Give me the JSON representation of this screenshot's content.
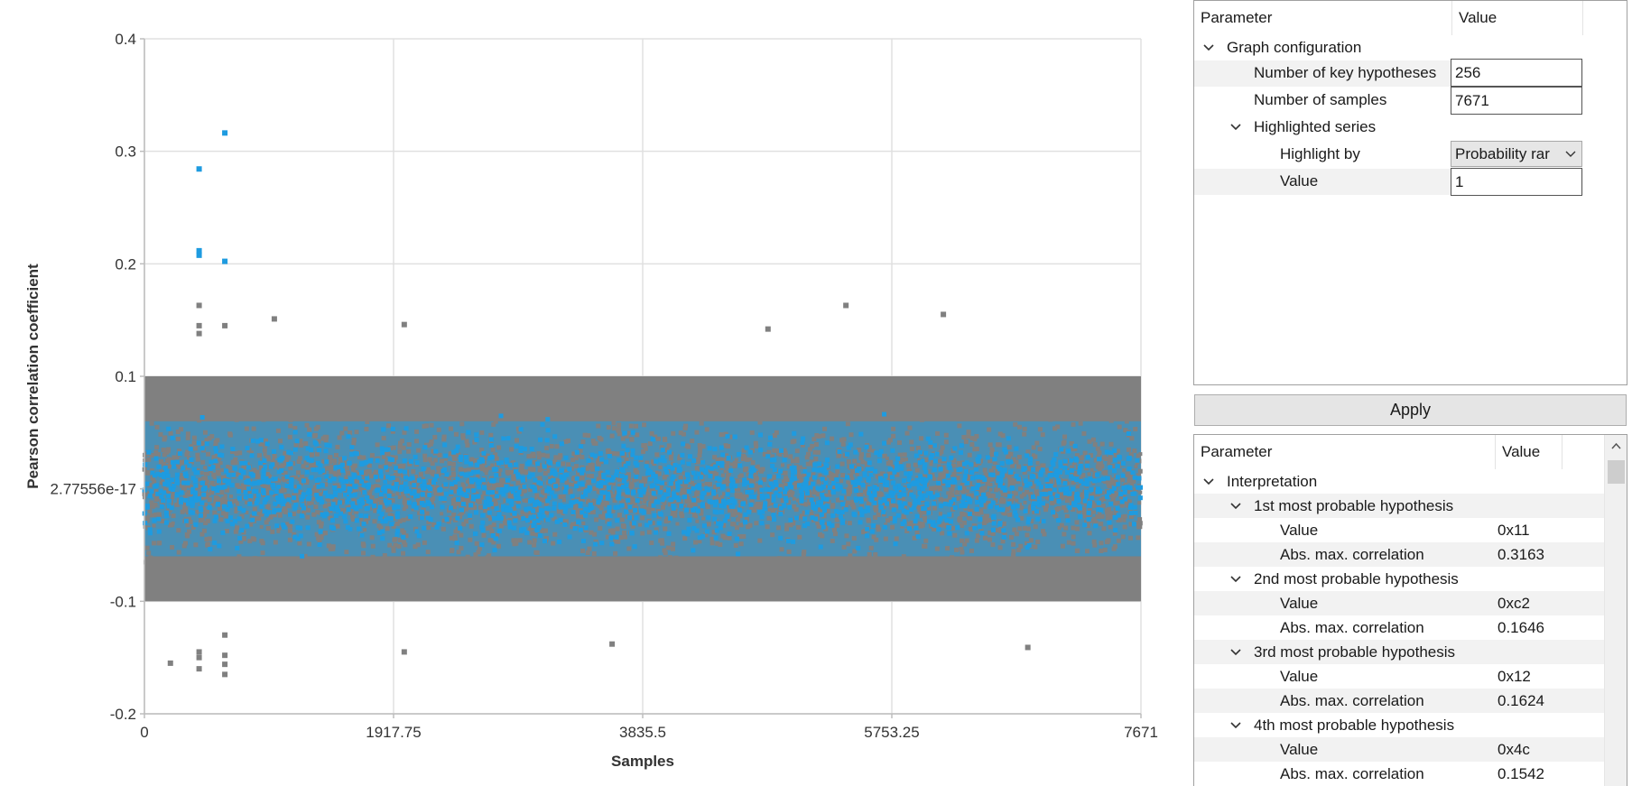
{
  "chart_data": {
    "type": "scatter",
    "xlabel": "Samples",
    "ylabel": "Pearson correlation coefficient",
    "xlim": [
      0,
      7671
    ],
    "ylim": [
      -0.2,
      0.4
    ],
    "x_ticks": [
      "0",
      "1917.75",
      "3835.5",
      "5753.25",
      "7671"
    ],
    "y_ticks": [
      "-0.2",
      "-0.1",
      "2.77556e-17",
      "0.1",
      "0.2",
      "0.3",
      "0.4"
    ],
    "grid": true,
    "colors": {
      "normal": "#808080",
      "highlighted": "#1e9be0"
    },
    "series": [
      {
        "band": [
          -0.1,
          0.1
        ],
        "outlier_range": [
          -0.165,
          0.163
        ]
      },
      {
        "band": [
          -0.06,
          0.06
        ],
        "points": [
          {
            "x": 421,
            "y": 0.2843
          },
          {
            "x": 421,
            "y": 0.2116
          },
          {
            "x": 421,
            "y": 0.2076
          },
          {
            "x": 619,
            "y": 0.3163
          },
          {
            "x": 619,
            "y": 0.2022
          }
        ]
      }
    ],
    "extra_points": [
      {
        "x": 421,
        "y": 0.163
      },
      {
        "x": 421,
        "y": 0.145
      },
      {
        "x": 421,
        "y": 0.138
      },
      {
        "x": 421,
        "y": -0.16
      },
      {
        "x": 421,
        "y": -0.15
      },
      {
        "x": 421,
        "y": -0.145
      },
      {
        "x": 619,
        "y": -0.165
      },
      {
        "x": 619,
        "y": -0.156
      },
      {
        "x": 619,
        "y": -0.148
      },
      {
        "x": 619,
        "y": -0.13
      },
      {
        "x": 619,
        "y": 0.145
      },
      {
        "x": 5400,
        "y": 0.163
      },
      {
        "x": 6150,
        "y": 0.155
      },
      {
        "x": 200,
        "y": -0.155
      },
      {
        "x": 2000,
        "y": -0.145
      },
      {
        "x": 3600,
        "y": -0.138
      },
      {
        "x": 6800,
        "y": -0.141
      },
      {
        "x": 1000,
        "y": 0.151
      },
      {
        "x": 2000,
        "y": 0.146
      },
      {
        "x": 4800,
        "y": 0.142
      }
    ]
  },
  "config_grid": {
    "header": {
      "parameter": "Parameter",
      "value": "Value"
    },
    "graph_configuration": "Graph configuration",
    "num_key_hypotheses_label": "Number of key hypotheses",
    "num_key_hypotheses_value": "256",
    "num_samples_label": "Number of samples",
    "num_samples_value": "7671",
    "highlighted_series": "Highlighted series",
    "highlight_by_label": "Highlight by",
    "highlight_by_value": "Probability rar",
    "value_label": "Value",
    "value_value": "1"
  },
  "apply_label": "Apply",
  "results_grid": {
    "header": {
      "parameter": "Parameter",
      "value": "Value"
    },
    "interpretation": "Interpretation",
    "hypotheses": [
      {
        "title": "1st most probable hypothesis",
        "value_label": "Value",
        "value": "0x11",
        "corr_label": "Abs. max. correlation",
        "corr": "0.3163"
      },
      {
        "title": "2nd most probable hypothesis",
        "value_label": "Value",
        "value": "0xc2",
        "corr_label": "Abs. max. correlation",
        "corr": "0.1646"
      },
      {
        "title": "3rd most probable hypothesis",
        "value_label": "Value",
        "value": "0x12",
        "corr_label": "Abs. max. correlation",
        "corr": "0.1624"
      },
      {
        "title": "4th most probable hypothesis",
        "value_label": "Value",
        "value": "0x4c",
        "corr_label": "Abs. max. correlation",
        "corr": "0.1542"
      }
    ]
  }
}
